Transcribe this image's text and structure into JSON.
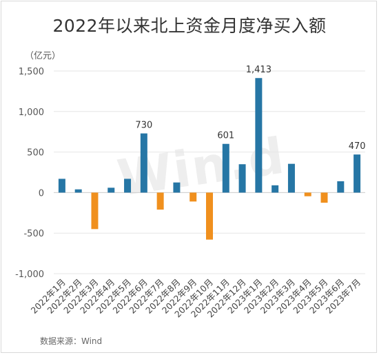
{
  "title": "2022年以来北上资金月度净买入额",
  "unit_label": "（亿元）",
  "source": "数据来源：Wind",
  "watermark": "Win.d",
  "chart_data": {
    "type": "bar",
    "title": "2022年以来北上资金月度净买入额",
    "ylabel": "（亿元）",
    "xlabel": "",
    "categories": [
      "2022年1月",
      "2022年2月",
      "2022年3月",
      "2022年4月",
      "2022年5月",
      "2022年6月",
      "2022年7月",
      "2022年8月",
      "2022年9月",
      "2022年10月",
      "2022年11月",
      "2022年12月",
      "2023年1月",
      "2023年2月",
      "2023年3月",
      "2023年4月",
      "2023年5月",
      "2023年6月",
      "2023年7月"
    ],
    "values": [
      170,
      40,
      -450,
      60,
      170,
      730,
      -210,
      125,
      -110,
      -580,
      601,
      350,
      1413,
      90,
      355,
      -45,
      -125,
      140,
      470
    ],
    "data_labels": {
      "5": "730",
      "10": "601",
      "12": "1,413",
      "18": "470"
    },
    "ylim": [
      -1000,
      1500
    ],
    "yticks": [
      -1000,
      -500,
      0,
      500,
      1000,
      1500
    ],
    "ytick_labels": [
      "-1,000",
      "-500",
      "0",
      "500",
      "1,000",
      "1,500"
    ],
    "colors": {
      "positive": "#2676a5",
      "negative": "#f0901e",
      "grid": "#e6e6e6"
    },
    "grid": true,
    "legend": "none"
  }
}
